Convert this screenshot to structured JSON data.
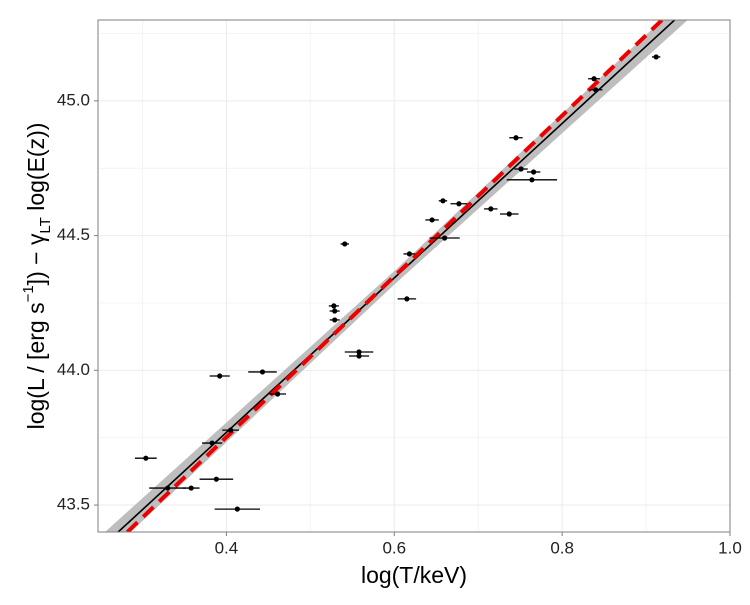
{
  "chart_data": {
    "type": "scatter",
    "x_label": "log(T/keV)",
    "y_label_parts": [
      "log(L / [erg s",
      "−1",
      "]) − γ",
      "LT",
      " log(E(z))"
    ],
    "xlim": [
      0.247,
      1.0
    ],
    "ylim": [
      43.4,
      45.3
    ],
    "xticks": [
      0.4,
      0.6,
      0.8,
      {
        "value": 1,
        "label": "1.0"
      }
    ],
    "yticks": [
      43.5,
      {
        "value": 44,
        "label": "44.0"
      },
      44.5,
      {
        "value": 45,
        "label": "45.0"
      }
    ],
    "grid": true,
    "color": "#000000",
    "points": {
      "x": [
        0.304,
        0.33,
        0.358,
        0.383,
        0.388,
        0.405,
        0.413,
        0.392,
        0.443,
        0.461,
        0.528,
        0.529,
        0.529,
        0.541,
        0.558,
        0.558,
        0.615,
        0.618,
        0.645,
        0.66,
        0.658,
        0.677,
        0.715,
        0.737,
        0.745,
        0.751,
        0.764,
        0.766,
        0.838,
        0.84,
        0.912
      ],
      "y": [
        43.674,
        43.563,
        43.563,
        43.73,
        43.596,
        43.778,
        43.485,
        43.979,
        43.994,
        43.912,
        44.239,
        44.22,
        44.187,
        44.469,
        44.068,
        44.053,
        44.265,
        44.432,
        44.558,
        44.491,
        44.629,
        44.618,
        44.599,
        44.58,
        44.863,
        44.747,
        44.707,
        44.736,
        45.082,
        45.041,
        45.163
      ],
      "xerr": [
        0.013,
        0.022,
        0.01,
        0.012,
        0.02,
        0.01,
        0.027,
        0.012,
        0.017,
        0.01,
        0.006,
        0.006,
        0.006,
        0.005,
        0.017,
        0.012,
        0.011,
        0.007,
        0.008,
        0.018,
        0.005,
        0.01,
        0.008,
        0.011,
        0.008,
        0.008,
        0.03,
        0.008,
        0.007,
        0.008,
        0.005
      ]
    },
    "band": {
      "x": [
        0.25,
        0.6,
        0.95
      ],
      "lower": [
        43.295,
        44.318,
        45.301
      ],
      "upper": [
        43.385,
        44.368,
        45.391
      ],
      "color": "#bebebe"
    },
    "fit": {
      "x": [
        0.271,
        0.934
      ],
      "y": [
        43.4,
        45.3
      ],
      "color": "#000000"
    },
    "dashed_fit": {
      "x": [
        0.282,
        0.919
      ],
      "y": [
        43.4,
        45.3
      ],
      "color": "#ee0000"
    }
  }
}
